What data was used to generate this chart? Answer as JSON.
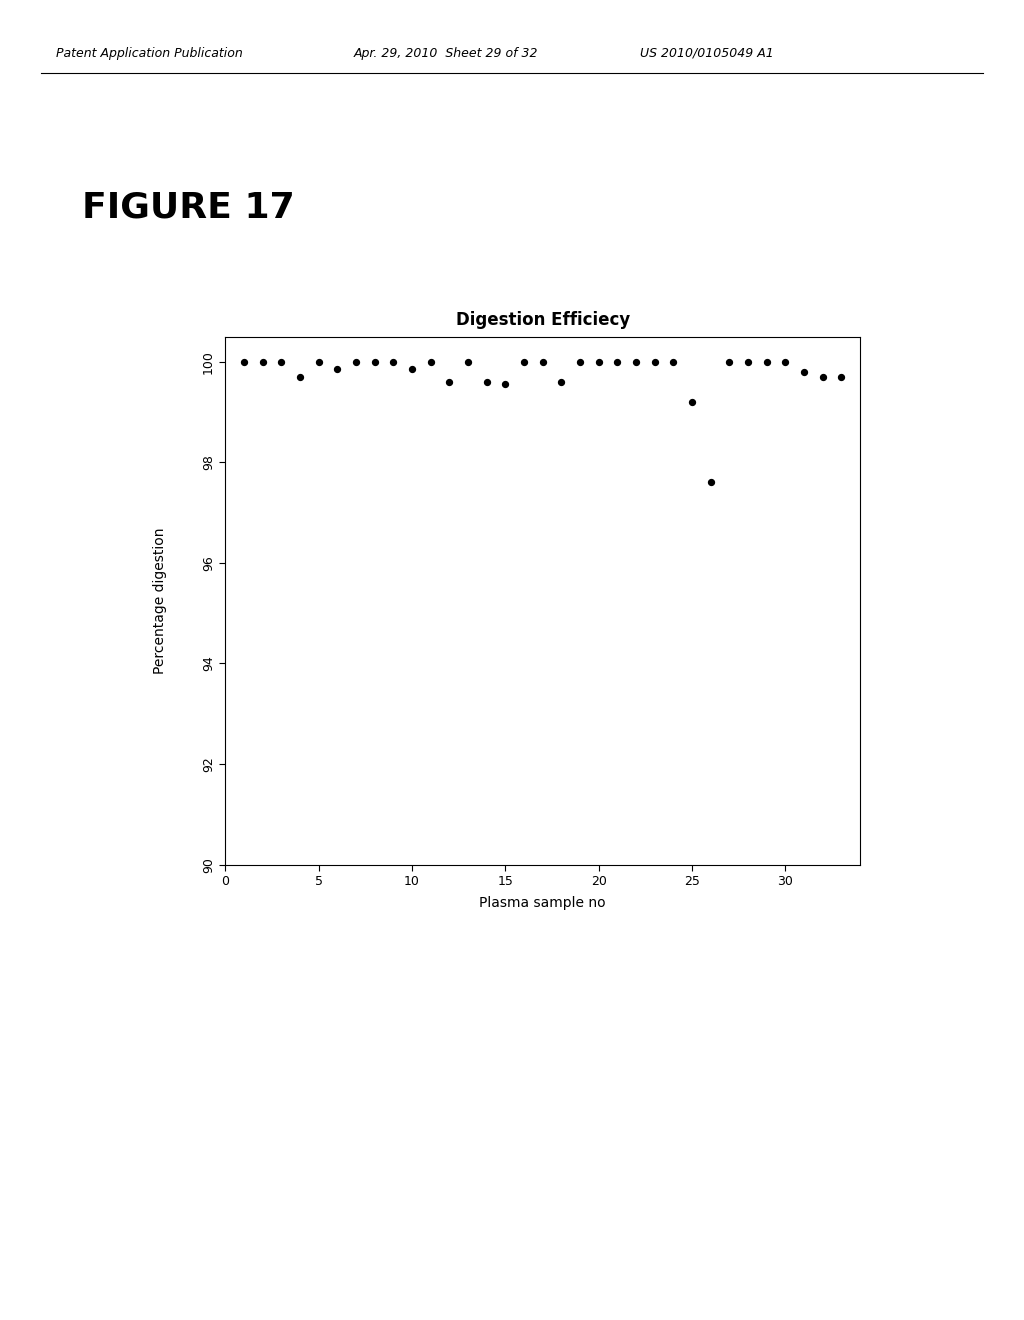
{
  "title": "Digestion Efficiecy",
  "xlabel": "Plasma sample no",
  "ylabel": "Percentage digestion",
  "xlim": [
    0,
    34
  ],
  "ylim": [
    90,
    100.5
  ],
  "yticks": [
    90,
    92,
    94,
    96,
    98,
    100
  ],
  "xticks": [
    0,
    5,
    10,
    15,
    20,
    25,
    30
  ],
  "header_left": "Patent Application Publication",
  "header_mid": "Apr. 29, 2010  Sheet 29 of 32",
  "header_right": "US 2010/0105049 A1",
  "figure_label": "FIGURE 17",
  "x_data": [
    1,
    2,
    3,
    4,
    5,
    6,
    7,
    8,
    9,
    10,
    11,
    12,
    13,
    14,
    15,
    16,
    17,
    18,
    19,
    20,
    21,
    22,
    23,
    24,
    25,
    26,
    27,
    28,
    29,
    30,
    31,
    32,
    33
  ],
  "y_data": [
    100.0,
    100.0,
    100.0,
    99.7,
    100.0,
    99.85,
    100.0,
    100.0,
    100.0,
    99.85,
    100.0,
    99.6,
    100.0,
    99.6,
    99.55,
    100.0,
    100.0,
    99.6,
    100.0,
    100.0,
    100.0,
    100.0,
    100.0,
    100.0,
    99.2,
    97.6,
    100.0,
    100.0,
    100.0,
    100.0,
    99.8,
    99.7,
    99.7
  ],
  "background_color": "#ffffff",
  "dot_color": "#000000",
  "dot_size": 18
}
